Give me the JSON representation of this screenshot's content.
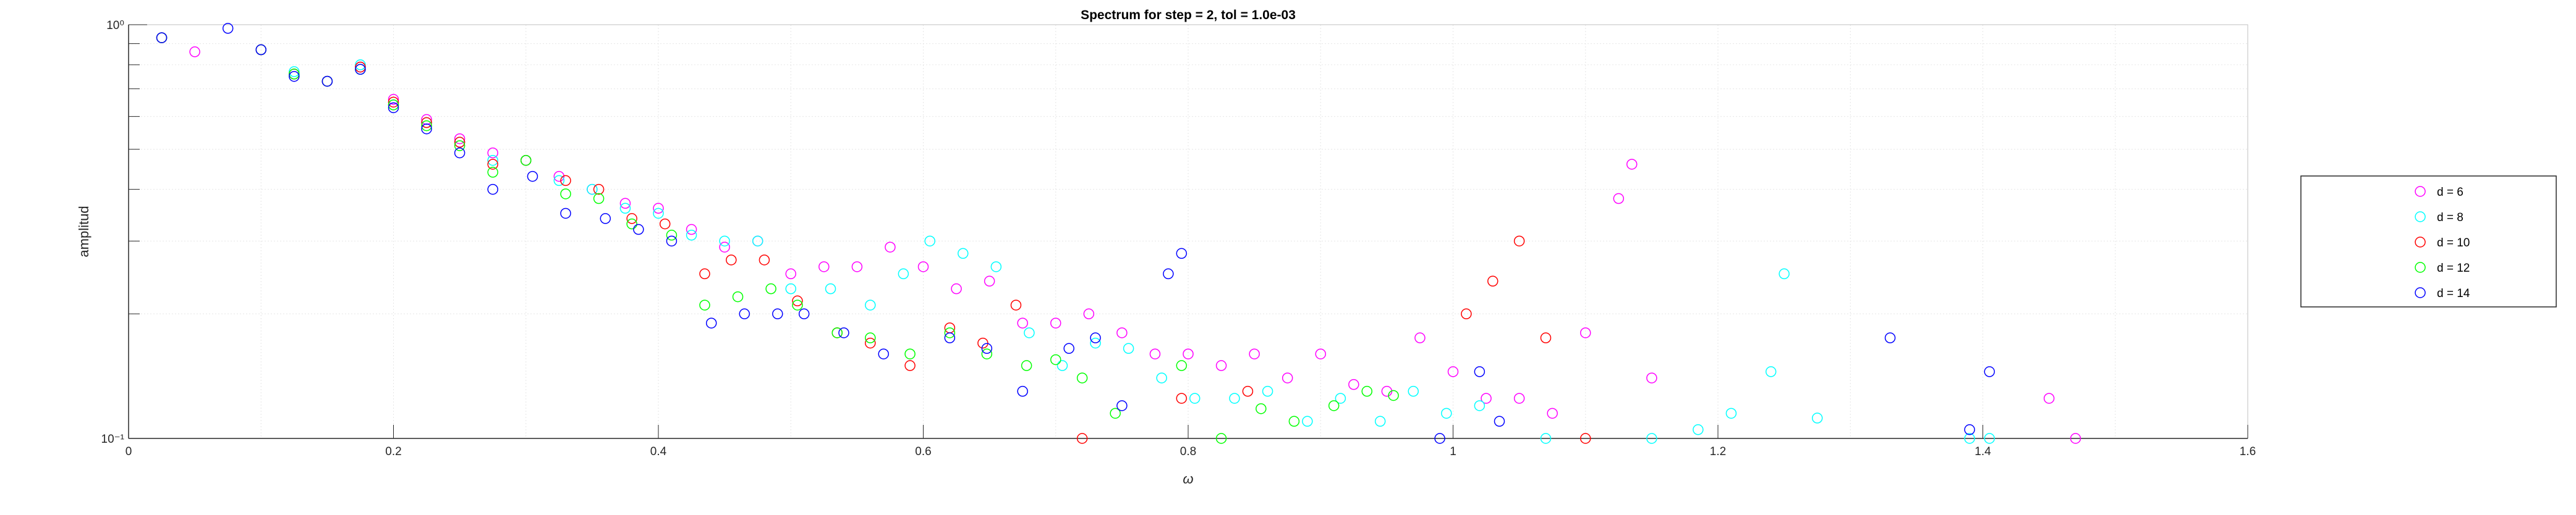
{
  "chart_data": {
    "type": "scatter",
    "title": "Spectrum for step = 2, tol = 1.0e-03",
    "xlabel": "ω",
    "ylabel": "amplitud",
    "xlim": [
      0,
      1.6
    ],
    "ylim": [
      0.1,
      1
    ],
    "yscale": "log",
    "xticks": [
      "0",
      "0.2",
      "0.4",
      "0.6",
      "0.8",
      "1",
      "1.2",
      "1.4",
      "1.6"
    ],
    "yticks": [
      "10⁻¹",
      "10⁰"
    ],
    "grid": "minor dotted",
    "legend_position": "right",
    "series": [
      {
        "name": "d = 6",
        "color": "#ff00ff",
        "points": [
          [
            0.025,
            0.93
          ],
          [
            0.05,
            0.86
          ],
          [
            0.1,
            0.87
          ],
          [
            0.125,
            0.76
          ],
          [
            0.15,
            0.73
          ],
          [
            0.175,
            0.79
          ],
          [
            0.2,
            0.66
          ],
          [
            0.225,
            0.59
          ],
          [
            0.25,
            0.53
          ],
          [
            0.275,
            0.49
          ],
          [
            0.3,
            0.47
          ],
          [
            0.325,
            0.43
          ],
          [
            0.35,
            0.4
          ],
          [
            0.375,
            0.37
          ],
          [
            0.4,
            0.36
          ],
          [
            0.425,
            0.32
          ],
          [
            0.45,
            0.29
          ],
          [
            0.475,
            0.3
          ],
          [
            0.5,
            0.25
          ],
          [
            0.525,
            0.26
          ],
          [
            0.55,
            0.26
          ],
          [
            0.575,
            0.29
          ],
          [
            0.6,
            0.26
          ],
          [
            0.625,
            0.23
          ],
          [
            0.65,
            0.24
          ],
          [
            0.675,
            0.19
          ],
          [
            0.7,
            0.19
          ],
          [
            0.725,
            0.2
          ],
          [
            0.75,
            0.18
          ],
          [
            0.775,
            0.16
          ],
          [
            0.8,
            0.16
          ],
          [
            0.825,
            0.15
          ],
          [
            0.85,
            0.16
          ],
          [
            0.875,
            0.14
          ],
          [
            0.9,
            0.16
          ],
          [
            0.925,
            0.135
          ],
          [
            0.95,
            0.13
          ],
          [
            0.975,
            0.175
          ],
          [
            1.0,
            0.145
          ],
          [
            1.025,
            0.125
          ],
          [
            1.05,
            0.125
          ],
          [
            1.075,
            0.115
          ],
          [
            1.1,
            0.18
          ],
          [
            1.125,
            0.38
          ],
          [
            1.135,
            0.46
          ],
          [
            1.15,
            0.14
          ],
          [
            1.45,
            0.125
          ],
          [
            1.47,
            0.1
          ]
        ]
      },
      {
        "name": "d = 8",
        "color": "#00ffff",
        "points": [
          [
            0.025,
            0.93
          ],
          [
            0.1,
            0.87
          ],
          [
            0.125,
            0.77
          ],
          [
            0.15,
            0.73
          ],
          [
            0.175,
            0.8
          ],
          [
            0.2,
            0.64
          ],
          [
            0.225,
            0.58
          ],
          [
            0.25,
            0.52
          ],
          [
            0.275,
            0.47
          ],
          [
            0.3,
            0.47
          ],
          [
            0.325,
            0.42
          ],
          [
            0.35,
            0.4
          ],
          [
            0.375,
            0.36
          ],
          [
            0.4,
            0.35
          ],
          [
            0.425,
            0.31
          ],
          [
            0.45,
            0.3
          ],
          [
            0.475,
            0.3
          ],
          [
            0.5,
            0.23
          ],
          [
            0.53,
            0.23
          ],
          [
            0.56,
            0.21
          ],
          [
            0.585,
            0.25
          ],
          [
            0.605,
            0.3
          ],
          [
            0.63,
            0.28
          ],
          [
            0.655,
            0.26
          ],
          [
            0.68,
            0.18
          ],
          [
            0.705,
            0.15
          ],
          [
            0.73,
            0.17
          ],
          [
            0.755,
            0.165
          ],
          [
            0.78,
            0.14
          ],
          [
            0.805,
            0.125
          ],
          [
            0.835,
            0.125
          ],
          [
            0.86,
            0.13
          ],
          [
            0.89,
            0.11
          ],
          [
            0.915,
            0.125
          ],
          [
            0.945,
            0.11
          ],
          [
            0.97,
            0.13
          ],
          [
            0.995,
            0.115
          ],
          [
            1.02,
            0.12
          ],
          [
            1.07,
            0.1
          ],
          [
            1.15,
            0.1
          ],
          [
            1.185,
            0.105
          ],
          [
            1.21,
            0.115
          ],
          [
            1.24,
            0.145
          ],
          [
            1.25,
            0.25
          ],
          [
            1.275,
            0.112
          ],
          [
            1.39,
            0.1
          ],
          [
            1.405,
            0.1
          ]
        ]
      },
      {
        "name": "d = 10",
        "color": "#ff0000",
        "points": [
          [
            0.025,
            0.93
          ],
          [
            0.1,
            0.87
          ],
          [
            0.125,
            0.76
          ],
          [
            0.15,
            0.73
          ],
          [
            0.175,
            0.79
          ],
          [
            0.2,
            0.65
          ],
          [
            0.225,
            0.58
          ],
          [
            0.25,
            0.52
          ],
          [
            0.275,
            0.46
          ],
          [
            0.3,
            0.47
          ],
          [
            0.33,
            0.42
          ],
          [
            0.355,
            0.4
          ],
          [
            0.38,
            0.34
          ],
          [
            0.405,
            0.33
          ],
          [
            0.435,
            0.25
          ],
          [
            0.455,
            0.27
          ],
          [
            0.48,
            0.27
          ],
          [
            0.505,
            0.215
          ],
          [
            0.535,
            0.18
          ],
          [
            0.56,
            0.17
          ],
          [
            0.59,
            0.15
          ],
          [
            0.62,
            0.185
          ],
          [
            0.645,
            0.17
          ],
          [
            0.67,
            0.21
          ],
          [
            0.72,
            0.1
          ],
          [
            0.795,
            0.125
          ],
          [
            0.845,
            0.13
          ],
          [
            1.01,
            0.2
          ],
          [
            1.03,
            0.24
          ],
          [
            1.05,
            0.3
          ],
          [
            1.07,
            0.175
          ],
          [
            1.1,
            0.1
          ]
        ]
      },
      {
        "name": "d = 12",
        "color": "#00ff00",
        "points": [
          [
            0.025,
            0.93
          ],
          [
            0.1,
            0.87
          ],
          [
            0.125,
            0.76
          ],
          [
            0.15,
            0.73
          ],
          [
            0.175,
            0.78
          ],
          [
            0.2,
            0.64
          ],
          [
            0.225,
            0.57
          ],
          [
            0.25,
            0.51
          ],
          [
            0.275,
            0.44
          ],
          [
            0.3,
            0.47
          ],
          [
            0.33,
            0.39
          ],
          [
            0.355,
            0.38
          ],
          [
            0.38,
            0.33
          ],
          [
            0.41,
            0.31
          ],
          [
            0.435,
            0.21
          ],
          [
            0.46,
            0.22
          ],
          [
            0.485,
            0.23
          ],
          [
            0.505,
            0.21
          ],
          [
            0.535,
            0.18
          ],
          [
            0.56,
            0.175
          ],
          [
            0.59,
            0.16
          ],
          [
            0.62,
            0.18
          ],
          [
            0.648,
            0.16
          ],
          [
            0.678,
            0.15
          ],
          [
            0.7,
            0.155
          ],
          [
            0.72,
            0.14
          ],
          [
            0.745,
            0.115
          ],
          [
            0.795,
            0.15
          ],
          [
            0.825,
            0.1
          ],
          [
            0.855,
            0.118
          ],
          [
            0.88,
            0.11
          ],
          [
            0.91,
            0.12
          ],
          [
            0.935,
            0.13
          ],
          [
            0.955,
            0.127
          ]
        ]
      },
      {
        "name": "d = 14",
        "color": "#0000ff",
        "points": [
          [
            0.025,
            0.93
          ],
          [
            0.075,
            0.98
          ],
          [
            0.1,
            0.87
          ],
          [
            0.125,
            0.75
          ],
          [
            0.15,
            0.73
          ],
          [
            0.175,
            0.78
          ],
          [
            0.2,
            0.63
          ],
          [
            0.225,
            0.56
          ],
          [
            0.25,
            0.49
          ],
          [
            0.275,
            0.4
          ],
          [
            0.305,
            0.43
          ],
          [
            0.33,
            0.35
          ],
          [
            0.36,
            0.34
          ],
          [
            0.385,
            0.32
          ],
          [
            0.41,
            0.3
          ],
          [
            0.44,
            0.19
          ],
          [
            0.465,
            0.2
          ],
          [
            0.49,
            0.2
          ],
          [
            0.51,
            0.2
          ],
          [
            0.54,
            0.18
          ],
          [
            0.57,
            0.16
          ],
          [
            0.62,
            0.175
          ],
          [
            0.648,
            0.165
          ],
          [
            0.675,
            0.13
          ],
          [
            0.71,
            0.165
          ],
          [
            0.73,
            0.175
          ],
          [
            0.75,
            0.12
          ],
          [
            0.785,
            0.25
          ],
          [
            0.795,
            0.28
          ],
          [
            0.99,
            0.1
          ],
          [
            1.02,
            0.145
          ],
          [
            1.035,
            0.11
          ],
          [
            1.33,
            0.175
          ],
          [
            1.39,
            0.105
          ],
          [
            1.405,
            0.145
          ]
        ]
      }
    ]
  }
}
